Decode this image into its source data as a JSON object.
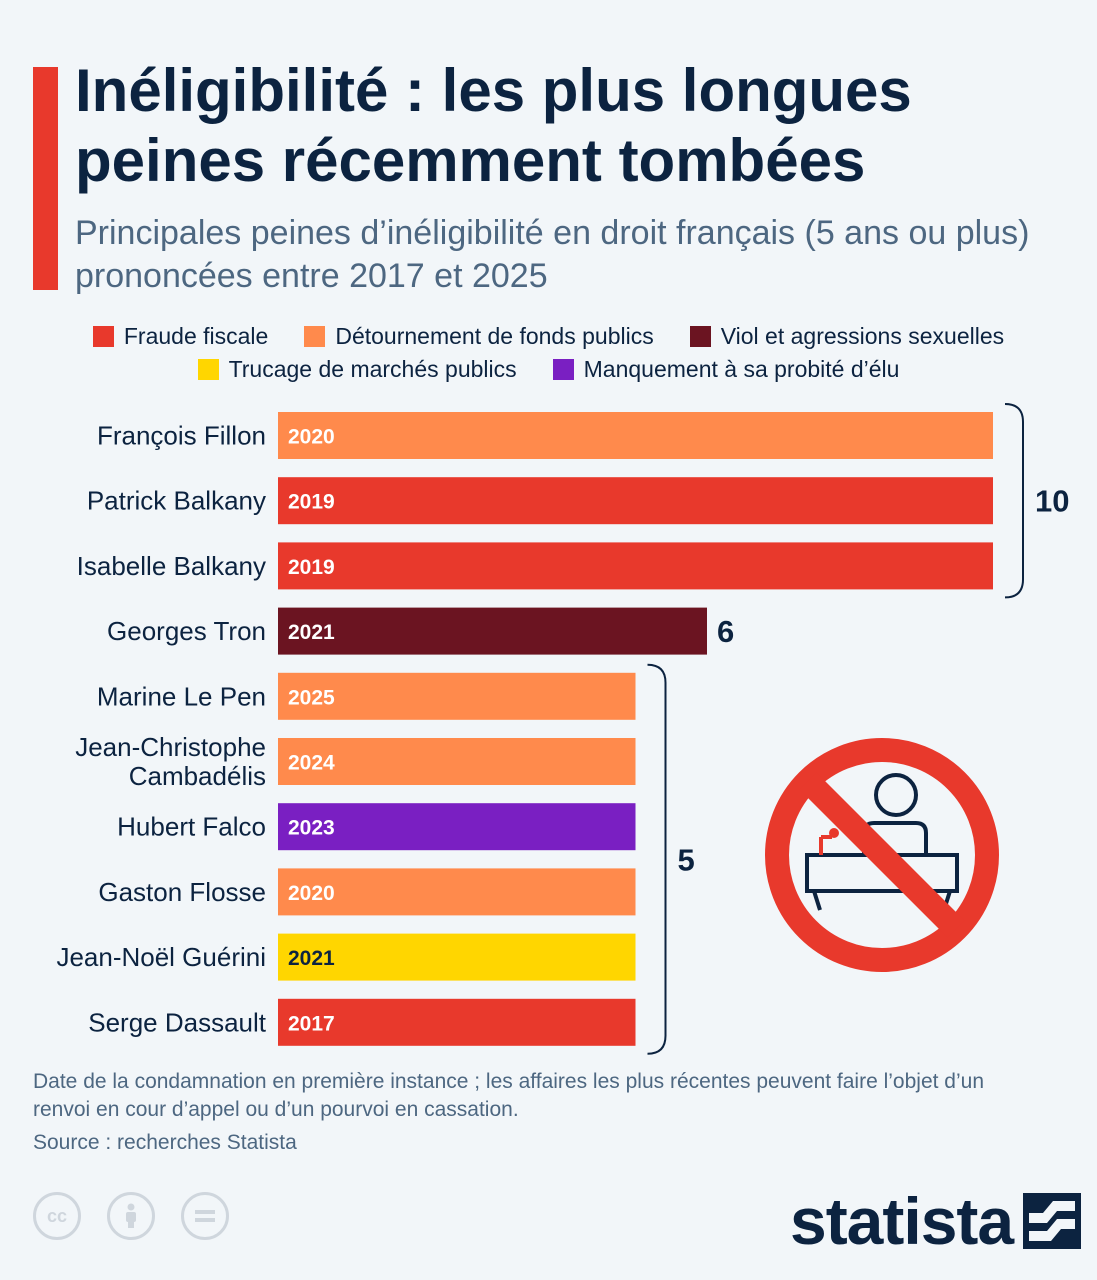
{
  "title": "Inéligibilité : les plus longues peines récemment tombées",
  "subtitle": "Principales peines d’inéligibilité en droit français (5 ans ou plus) prononcées entre 2017 et 2025",
  "legend": [
    {
      "label": "Fraude fiscale",
      "color": "#e8392c"
    },
    {
      "label": "Détournement de fonds publics",
      "color": "#ff8a4c"
    },
    {
      "label": "Viol et agressions sexuelles",
      "color": "#6b1421"
    },
    {
      "label": "Trucage de marchés publics",
      "color": "#ffd600"
    },
    {
      "label": "Manquement à sa probité d’élu",
      "color": "#7a1fc2"
    }
  ],
  "chart_data": {
    "type": "bar",
    "orientation": "horizontal",
    "categories": [
      "François Fillon",
      "Patrick Balkany",
      "Isabelle Balkany",
      "Georges Tron",
      "Marine Le Pen",
      "Jean-Christophe Cambadélis",
      "Hubert Falco",
      "Gaston Flosse",
      "Jean-Noël Guérini",
      "Serge Dassault"
    ],
    "values": [
      10,
      10,
      10,
      6,
      5,
      5,
      5,
      5,
      5,
      5
    ],
    "bar_labels": [
      "2020",
      "2019",
      "2019",
      "2021",
      "2025",
      "2024",
      "2023",
      "2020",
      "2021",
      "2017"
    ],
    "colors": [
      "#ff8a4c",
      "#e8392c",
      "#e8392c",
      "#6b1421",
      "#ff8a4c",
      "#ff8a4c",
      "#7a1fc2",
      "#ff8a4c",
      "#ffd600",
      "#e8392c"
    ],
    "group_labels": [
      {
        "rows": [
          0,
          2
        ],
        "value": "10"
      },
      {
        "rows": [
          3,
          3
        ],
        "value": "6"
      },
      {
        "rows": [
          4,
          9
        ],
        "value": "5"
      }
    ],
    "xlim": [
      0,
      10
    ],
    "grid": false
  },
  "icon": "no-politician-icon",
  "notes": "Date de la condamnation en première instance ; les affaires les plus récentes peuvent faire l’objet d’un renvoi en cour d’appel ou d’un pourvoi en cassation.",
  "source": "Source : recherches Statista",
  "license_icons": [
    "cc-icon",
    "by-icon",
    "nd-icon"
  ],
  "brand": "statista"
}
